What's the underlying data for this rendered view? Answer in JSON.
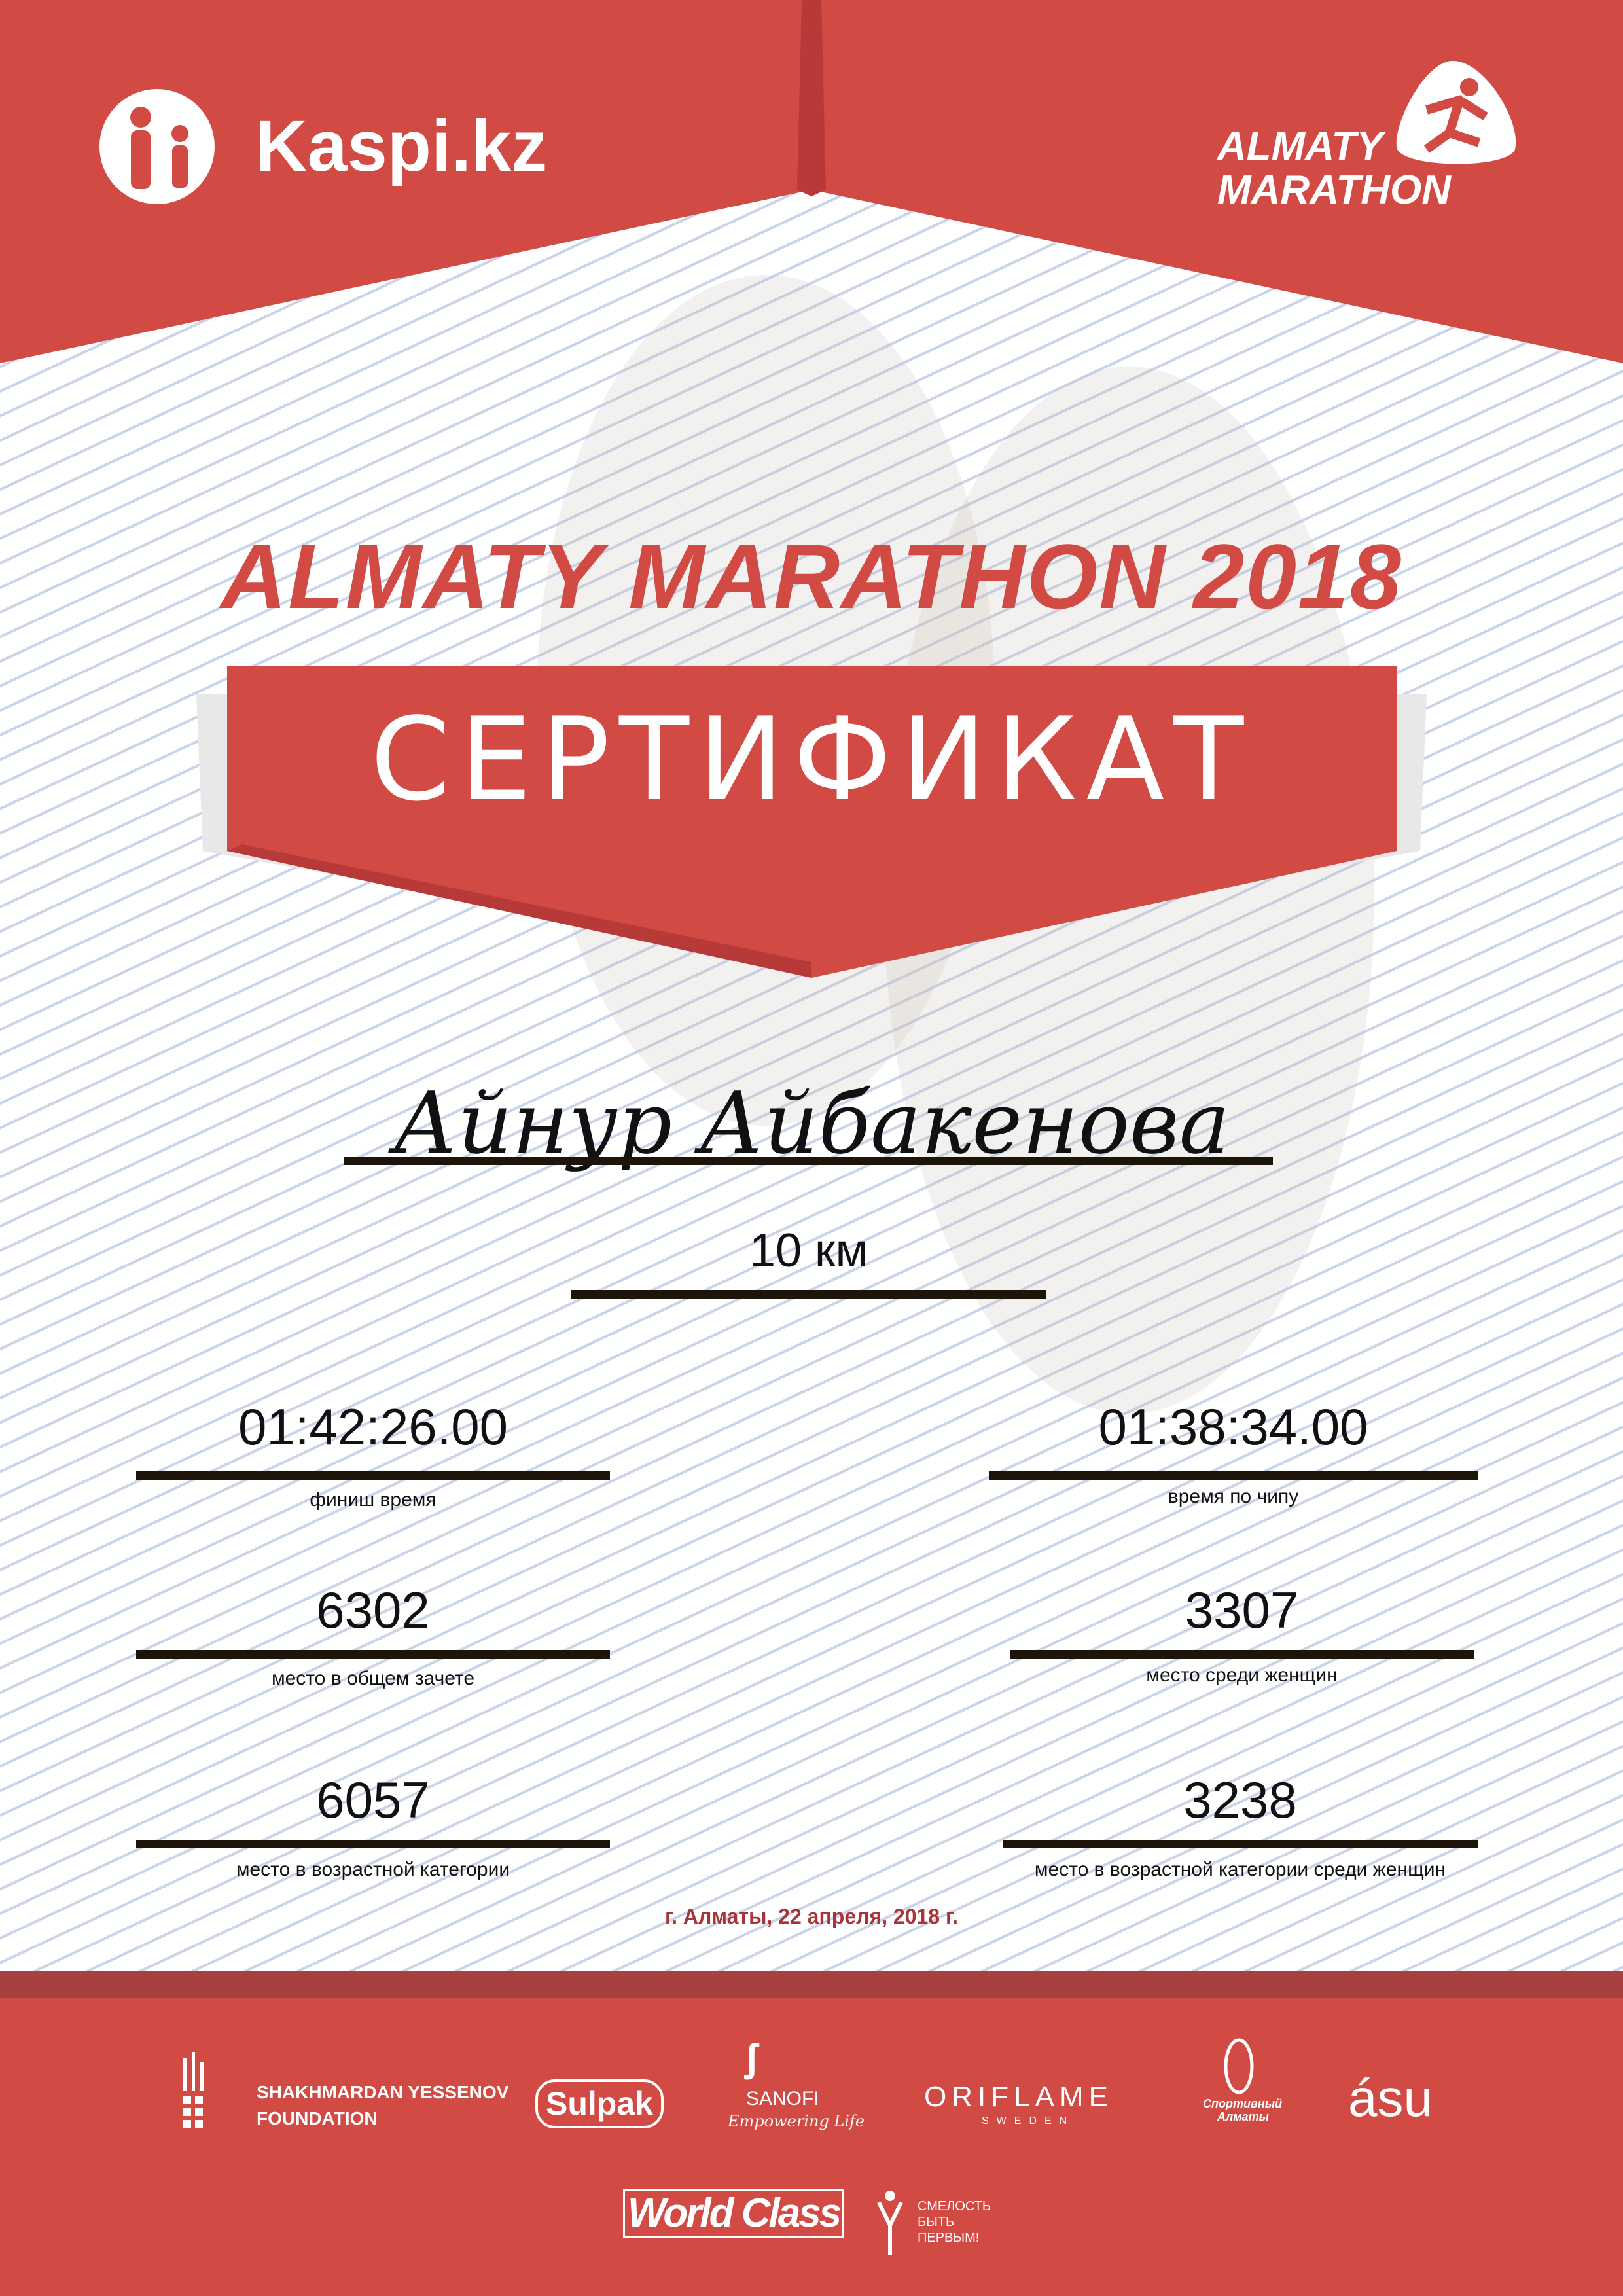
{
  "header": {
    "sponsor_logo": "Kaspi.kz",
    "event_logo_line1": "ALMATY",
    "event_logo_line2": "MARATHON"
  },
  "title": "ALMATY MARATHON 2018",
  "certificate_label": "СЕРТИФИКАТ",
  "participant_name": "Айнур Айбакенова",
  "distance": "10 км",
  "results": {
    "finish_time": {
      "value": "01:42:26.00",
      "label": "финиш время"
    },
    "chip_time": {
      "value": "01:38:34.00",
      "label": "время по чипу"
    },
    "overall_place": {
      "value": "6302",
      "label": "место в общем зачете"
    },
    "women_place": {
      "value": "3307",
      "label": "место среди женщин"
    },
    "age_place": {
      "value": "6057",
      "label": "место в возрастной категории"
    },
    "age_women_place": {
      "value": "3238",
      "label": "место в возрастной категории среди женщин"
    }
  },
  "date_place": "г. Алматы, 22 апреля, 2018 г.",
  "sponsors": {
    "yessenov": [
      "SHAKHMARDAN YESSENOV",
      "FOUNDATION"
    ],
    "sulpak": "Sulpak",
    "sanofi": [
      "SANOFI",
      "Empowering Life"
    ],
    "oriflame": [
      "ORIFLAME",
      "SWEDEN"
    ],
    "sport_almaty": [
      "Спортивный",
      "Алматы"
    ],
    "asu": "ásu",
    "worldclass": "World Class",
    "fund": [
      "СМЕЛОСТЬ",
      "БЫТЬ",
      "ПЕРВЫМ!"
    ]
  },
  "colors": {
    "brand_red": "#d24a44",
    "dark_red": "#a84040",
    "line": "#1e150a"
  }
}
